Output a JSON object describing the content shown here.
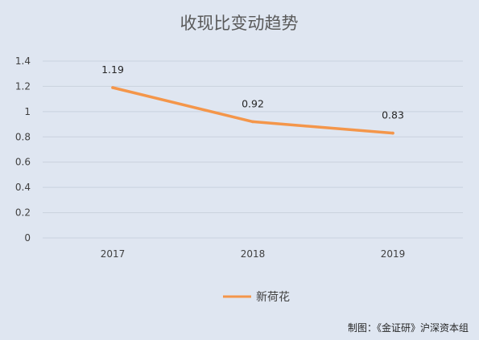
{
  "chart_data": {
    "type": "line",
    "title": "收现比变动趋势",
    "categories": [
      "2017",
      "2018",
      "2019"
    ],
    "series": [
      {
        "name": "新荷花",
        "values": [
          1.19,
          0.92,
          0.83
        ],
        "color": "#f4964a"
      }
    ],
    "data_labels": [
      "1.19",
      "0.92",
      "0.83"
    ],
    "ylim": [
      0,
      1.4
    ],
    "yticks": [
      "0",
      "0.2",
      "0.4",
      "0.6",
      "0.8",
      "1",
      "1.2",
      "1.4"
    ],
    "ytick_values": [
      0,
      0.2,
      0.4,
      0.6,
      0.8,
      1,
      1.2,
      1.4
    ],
    "grid": true,
    "legend_position": "bottom"
  },
  "credit": "制图：《金证研》沪深资本组"
}
